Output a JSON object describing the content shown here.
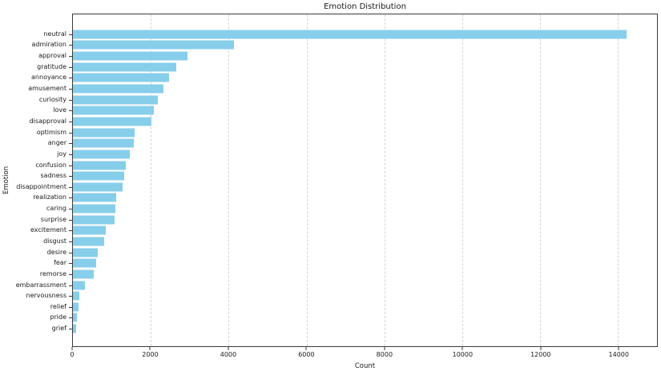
{
  "chart_data": {
    "type": "bar",
    "orientation": "horizontal",
    "title": "Emotion Distribution",
    "xlabel": "Count",
    "ylabel": "Emotion",
    "categories": [
      "neutral",
      "admiration",
      "approval",
      "gratitude",
      "annoyance",
      "amusement",
      "curiosity",
      "love",
      "disapproval",
      "optimism",
      "anger",
      "joy",
      "confusion",
      "sadness",
      "disappointment",
      "realization",
      "caring",
      "surprise",
      "excitement",
      "disgust",
      "desire",
      "fear",
      "remorse",
      "embarrassment",
      "nervousness",
      "relief",
      "pride",
      "grief"
    ],
    "values": [
      14219,
      4130,
      2939,
      2662,
      2470,
      2328,
      2191,
      2086,
      2022,
      1581,
      1567,
      1452,
      1368,
      1326,
      1269,
      1110,
      1087,
      1060,
      853,
      793,
      641,
      596,
      545,
      303,
      164,
      153,
      111,
      77
    ],
    "xlim": [
      0,
      15000
    ],
    "xticks": [
      0,
      2000,
      4000,
      6000,
      8000,
      10000,
      12000,
      14000
    ],
    "xtick_labels": [
      "0",
      "2000",
      "4000",
      "6000",
      "8000",
      "10000",
      "12000",
      "14000"
    ],
    "grid": true,
    "legend": "none",
    "bar_color": "#87ceeb",
    "grid_color": "#d4d4d4",
    "spine_color": "#3a3a3a",
    "text_color": "#1a1a1a"
  }
}
